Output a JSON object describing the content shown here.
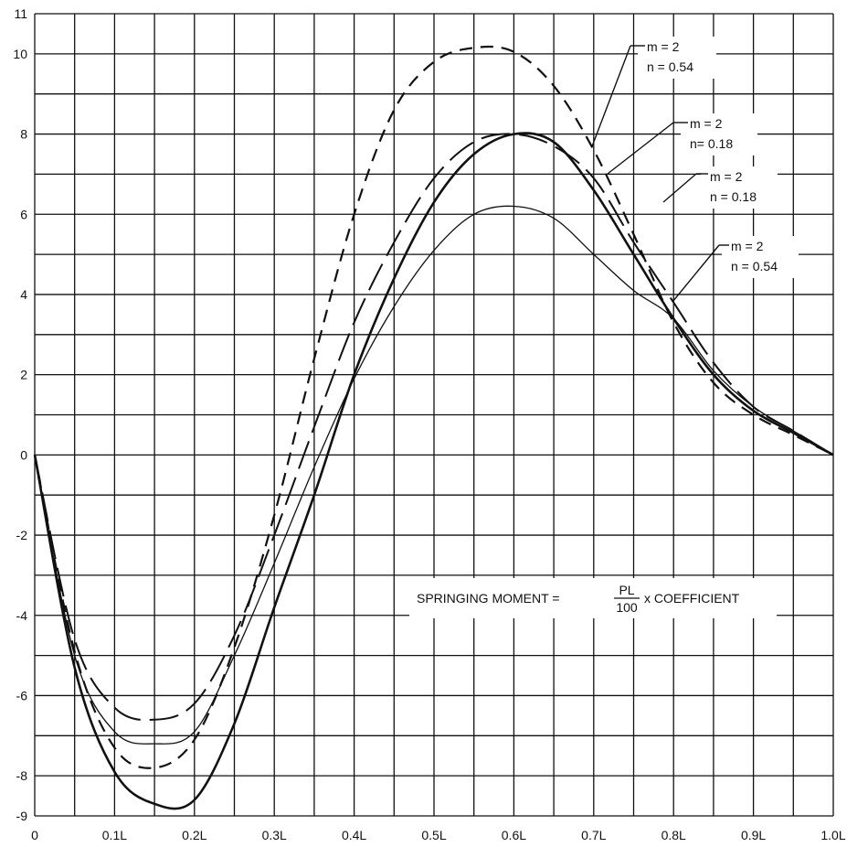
{
  "chart_data": {
    "type": "line",
    "title": "",
    "xlabel": "",
    "ylabel": "",
    "xlim": [
      0,
      1.0
    ],
    "ylim": [
      -9,
      11
    ],
    "grid": true,
    "x_ticks": [
      0,
      0.05,
      0.1,
      0.15,
      0.2,
      0.25,
      0.3,
      0.35,
      0.4,
      0.45,
      0.5,
      0.55,
      0.6,
      0.65,
      0.7,
      0.75,
      0.8,
      0.85,
      0.9,
      0.95,
      1.0
    ],
    "y_ticks": [
      -9,
      -8,
      -7,
      -6,
      -5,
      -4,
      -3,
      -2,
      -1,
      0,
      1,
      2,
      3,
      4,
      5,
      6,
      7,
      8,
      9,
      10,
      11
    ],
    "x_tick_labels": [
      {
        "x": 0,
        "text": "0"
      },
      {
        "x": 0.1,
        "text": "0.1L"
      },
      {
        "x": 0.2,
        "text": "0.2L"
      },
      {
        "x": 0.3,
        "text": "0.3L"
      },
      {
        "x": 0.4,
        "text": "0.4L"
      },
      {
        "x": 0.5,
        "text": "0.5L"
      },
      {
        "x": 0.6,
        "text": "0.6L"
      },
      {
        "x": 0.7,
        "text": "0.7L"
      },
      {
        "x": 0.8,
        "text": "0.8L"
      },
      {
        "x": 0.9,
        "text": "0.9L"
      },
      {
        "x": 1.0,
        "text": "1.0L"
      }
    ],
    "y_tick_labels": [
      {
        "y": 11,
        "text": "11"
      },
      {
        "y": 10,
        "text": "10"
      },
      {
        "y": 8,
        "text": "8"
      },
      {
        "y": 6,
        "text": "6"
      },
      {
        "y": 4,
        "text": "4"
      },
      {
        "y": 2,
        "text": "2"
      },
      {
        "y": 0,
        "text": "0"
      },
      {
        "y": -2,
        "text": "-2"
      },
      {
        "y": -4,
        "text": "-4"
      },
      {
        "y": -6,
        "text": "-6"
      },
      {
        "y": -8,
        "text": "-8"
      },
      {
        "y": -9,
        "text": "-9"
      }
    ],
    "series": [
      {
        "style": "dashed-short",
        "x": [
          0,
          0.05,
          0.1,
          0.15,
          0.2,
          0.25,
          0.3,
          0.35,
          0.4,
          0.45,
          0.5,
          0.55,
          0.6,
          0.65,
          0.7,
          0.75,
          0.8,
          0.85,
          0.9,
          0.95,
          1.0
        ],
        "y": [
          0,
          -4.9,
          -7.3,
          -7.8,
          -7.1,
          -4.8,
          -1.5,
          2.4,
          6.0,
          8.6,
          9.8,
          10.15,
          10.05,
          9.2,
          7.6,
          5.5,
          3.3,
          1.8,
          1.0,
          0.5,
          0
        ]
      },
      {
        "style": "dashed-long",
        "x": [
          0,
          0.05,
          0.1,
          0.15,
          0.2,
          0.25,
          0.3,
          0.35,
          0.4,
          0.45,
          0.5,
          0.55,
          0.6,
          0.65,
          0.7,
          0.75,
          0.8,
          0.85,
          0.9,
          0.95,
          1.0
        ],
        "y": [
          0,
          -4.6,
          -6.3,
          -6.6,
          -6.2,
          -4.5,
          -2.0,
          0.7,
          3.3,
          5.3,
          6.9,
          7.8,
          8.0,
          7.7,
          6.9,
          5.3,
          3.8,
          2.3,
          1.2,
          0.6,
          0
        ]
      },
      {
        "style": "solid-thick",
        "x": [
          0,
          0.05,
          0.1,
          0.15,
          0.2,
          0.25,
          0.3,
          0.35,
          0.4,
          0.45,
          0.5,
          0.55,
          0.6,
          0.65,
          0.7,
          0.75,
          0.8,
          0.85,
          0.9,
          0.95,
          1.0
        ],
        "y": [
          0,
          -5.3,
          -7.9,
          -8.7,
          -8.6,
          -6.7,
          -3.8,
          -1.0,
          2.0,
          4.4,
          6.3,
          7.5,
          8.0,
          7.8,
          6.6,
          5.0,
          3.4,
          2.0,
          1.1,
          0.55,
          0
        ]
      },
      {
        "style": "solid-thin",
        "x": [
          0,
          0.05,
          0.1,
          0.15,
          0.2,
          0.25,
          0.3,
          0.35,
          0.4,
          0.45,
          0.5,
          0.55,
          0.6,
          0.65,
          0.7,
          0.75,
          0.8,
          0.85,
          0.9,
          0.95,
          1.0
        ],
        "y": [
          0,
          -5.0,
          -6.9,
          -7.2,
          -6.9,
          -5.0,
          -2.7,
          -0.3,
          1.9,
          3.7,
          5.1,
          6.0,
          6.2,
          5.9,
          5.0,
          4.1,
          3.4,
          2.1,
          1.2,
          0.6,
          0
        ]
      }
    ],
    "annotations": [
      {
        "line1": "m = 2",
        "line2": "n = 0.54"
      },
      {
        "line1": "m = 2",
        "line2": "n= 0.18"
      },
      {
        "line1": "m = 2",
        "line2": "n = 0.18"
      },
      {
        "line1": "m = 2",
        "line2": "n = 0.54"
      }
    ],
    "formula": {
      "prefix": "SPRINGING MOMENT =",
      "numerator": "PL",
      "denominator": "100",
      "suffix": "x COEFFICIENT"
    }
  }
}
